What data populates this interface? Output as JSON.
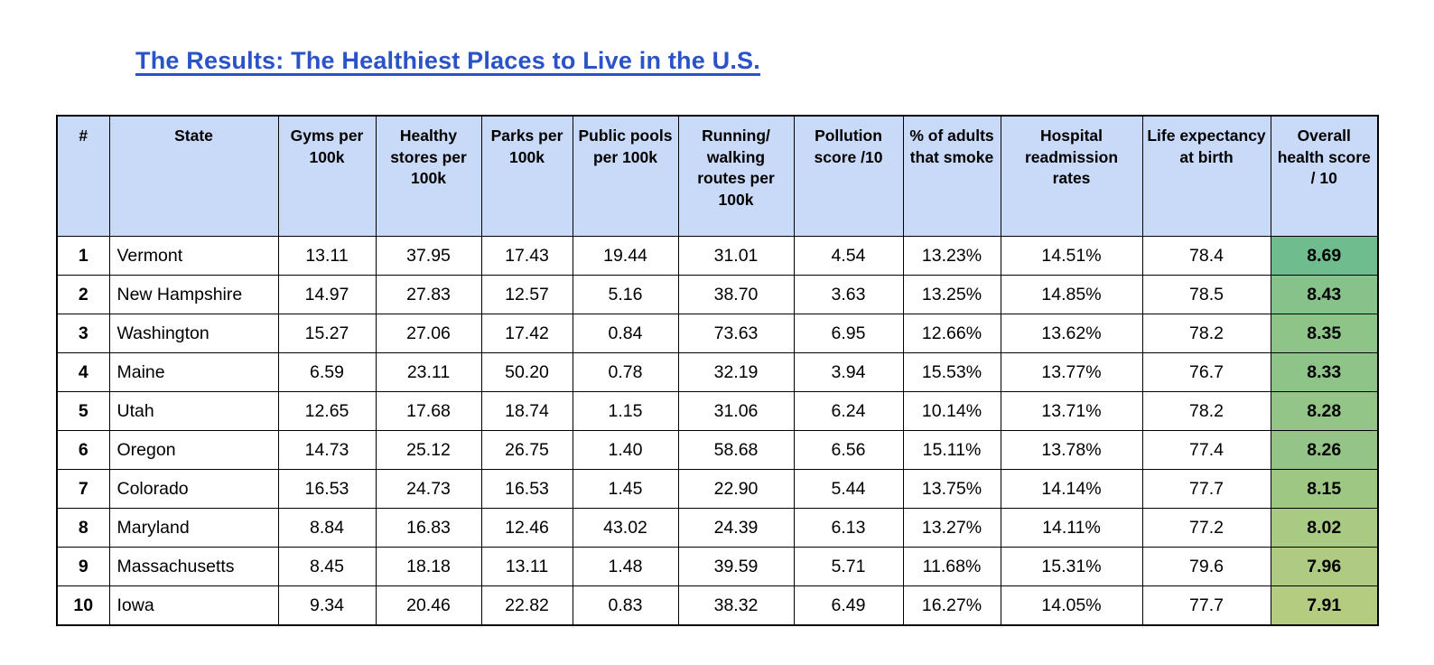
{
  "title": {
    "text": "The Results: The Healthiest Places to Live in the U.S.",
    "color": "#2a53c9"
  },
  "table": {
    "header_bg": "#c9daf8",
    "columns": [
      "#",
      "State",
      "Gyms per 100k",
      "Healthy stores per 100k",
      "Parks per 100k",
      "Public pools per 100k",
      "Running/ walking routes per 100k",
      "Pollution score /10",
      "% of adults that smoke",
      "Hospital readmission rates",
      "Life expectancy at birth",
      "Overall health score / 10"
    ],
    "rows": [
      {
        "rank": "1",
        "state": "Vermont",
        "gyms_per_100k": "13.11",
        "healthy_stores_per_100k": "37.95",
        "parks_per_100k": "17.43",
        "public_pools_per_100k": "19.44",
        "running_routes_per_100k": "31.01",
        "pollution_score": "4.54",
        "adults_smoke_pct": "13.23%",
        "hospital_readmission_rate": "14.51%",
        "life_expectancy": "78.4",
        "overall_health_score": "8.69",
        "score_color": "#6fbd8e"
      },
      {
        "rank": "2",
        "state": "New Hampshire",
        "gyms_per_100k": "14.97",
        "healthy_stores_per_100k": "27.83",
        "parks_per_100k": "12.57",
        "public_pools_per_100k": "5.16",
        "running_routes_per_100k": "38.70",
        "pollution_score": "3.63",
        "adults_smoke_pct": "13.25%",
        "hospital_readmission_rate": "14.85%",
        "life_expectancy": "78.5",
        "overall_health_score": "8.43",
        "score_color": "#86c289"
      },
      {
        "rank": "3",
        "state": "Washington",
        "gyms_per_100k": "15.27",
        "healthy_stores_per_100k": "27.06",
        "parks_per_100k": "17.42",
        "public_pools_per_100k": "0.84",
        "running_routes_per_100k": "73.63",
        "pollution_score": "6.95",
        "adults_smoke_pct": "12.66%",
        "hospital_readmission_rate": "13.62%",
        "life_expectancy": "78.2",
        "overall_health_score": "8.35",
        "score_color": "#8dc488"
      },
      {
        "rank": "4",
        "state": "Maine",
        "gyms_per_100k": "6.59",
        "healthy_stores_per_100k": "23.11",
        "parks_per_100k": "50.20",
        "public_pools_per_100k": "0.78",
        "running_routes_per_100k": "32.19",
        "pollution_score": "3.94",
        "adults_smoke_pct": "15.53%",
        "hospital_readmission_rate": "13.77%",
        "life_expectancy": "76.7",
        "overall_health_score": "8.33",
        "score_color": "#8ec488"
      },
      {
        "rank": "5",
        "state": "Utah",
        "gyms_per_100k": "12.65",
        "healthy_stores_per_100k": "17.68",
        "parks_per_100k": "18.74",
        "public_pools_per_100k": "1.15",
        "running_routes_per_100k": "31.06",
        "pollution_score": "6.24",
        "adults_smoke_pct": "10.14%",
        "hospital_readmission_rate": "13.71%",
        "life_expectancy": "78.2",
        "overall_health_score": "8.28",
        "score_color": "#93c587"
      },
      {
        "rank": "6",
        "state": "Oregon",
        "gyms_per_100k": "14.73",
        "healthy_stores_per_100k": "25.12",
        "parks_per_100k": "26.75",
        "public_pools_per_100k": "1.40",
        "running_routes_per_100k": "58.68",
        "pollution_score": "6.56",
        "adults_smoke_pct": "15.11%",
        "hospital_readmission_rate": "13.78%",
        "life_expectancy": "77.4",
        "overall_health_score": "8.26",
        "score_color": "#94c586"
      },
      {
        "rank": "7",
        "state": "Colorado",
        "gyms_per_100k": "16.53",
        "healthy_stores_per_100k": "24.73",
        "parks_per_100k": "16.53",
        "public_pools_per_100k": "1.45",
        "running_routes_per_100k": "22.90",
        "pollution_score": "5.44",
        "adults_smoke_pct": "13.75%",
        "hospital_readmission_rate": "14.14%",
        "life_expectancy": "77.7",
        "overall_health_score": "8.15",
        "score_color": "#9ec784"
      },
      {
        "rank": "8",
        "state": "Maryland",
        "gyms_per_100k": "8.84",
        "healthy_stores_per_100k": "16.83",
        "parks_per_100k": "12.46",
        "public_pools_per_100k": "43.02",
        "running_routes_per_100k": "24.39",
        "pollution_score": "6.13",
        "adults_smoke_pct": "13.27%",
        "hospital_readmission_rate": "14.11%",
        "life_expectancy": "77.2",
        "overall_health_score": "8.02",
        "score_color": "#a9ca82"
      },
      {
        "rank": "9",
        "state": "Massachusetts",
        "gyms_per_100k": "8.45",
        "healthy_stores_per_100k": "18.18",
        "parks_per_100k": "13.11",
        "public_pools_per_100k": "1.48",
        "running_routes_per_100k": "39.59",
        "pollution_score": "5.71",
        "adults_smoke_pct": "11.68%",
        "hospital_readmission_rate": "15.31%",
        "life_expectancy": "79.6",
        "overall_health_score": "7.96",
        "score_color": "#afcb81"
      },
      {
        "rank": "10",
        "state": "Iowa",
        "gyms_per_100k": "9.34",
        "healthy_stores_per_100k": "20.46",
        "parks_per_100k": "22.82",
        "public_pools_per_100k": "0.83",
        "running_routes_per_100k": "38.32",
        "pollution_score": "6.49",
        "adults_smoke_pct": "16.27%",
        "hospital_readmission_rate": "14.05%",
        "life_expectancy": "77.7",
        "overall_health_score": "7.91",
        "score_color": "#b3cc80"
      }
    ]
  }
}
